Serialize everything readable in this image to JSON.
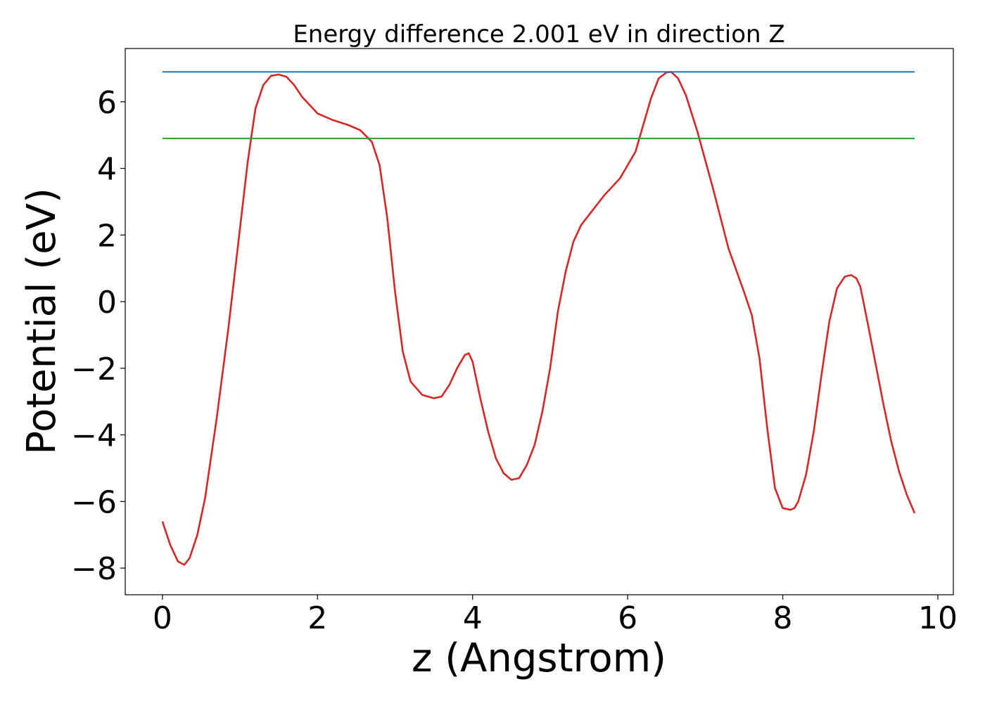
{
  "chart_data": {
    "type": "line",
    "title": "Energy difference 2.001 eV in direction Z",
    "xlabel": "z (Angstrom)",
    "ylabel": "Potential (eV)",
    "xlim": [
      -0.48,
      10.2
    ],
    "ylim": [
      -8.8,
      7.6
    ],
    "xticks": [
      0,
      2,
      4,
      6,
      8,
      10
    ],
    "xtick_labels": [
      "0",
      "2",
      "4",
      "6",
      "8",
      "10"
    ],
    "yticks": [
      -8,
      -6,
      -4,
      -2,
      0,
      2,
      4,
      6
    ],
    "ytick_labels": [
      "−8",
      "−6",
      "−4",
      "−2",
      "0",
      "2",
      "4",
      "6"
    ],
    "grid": false,
    "series": [
      {
        "color": "#d62728",
        "x": [
          0,
          0.1,
          0.2,
          0.28,
          0.35,
          0.45,
          0.55,
          0.7,
          0.85,
          1.0,
          1.1,
          1.2,
          1.3,
          1.4,
          1.5,
          1.6,
          1.7,
          1.8,
          2.0,
          2.2,
          2.4,
          2.55,
          2.7,
          2.8,
          2.9,
          3.0,
          3.1,
          3.2,
          3.35,
          3.5,
          3.6,
          3.7,
          3.8,
          3.9,
          3.95,
          4.0,
          4.1,
          4.2,
          4.3,
          4.4,
          4.5,
          4.6,
          4.7,
          4.8,
          4.9,
          5.0,
          5.1,
          5.2,
          5.3,
          5.4,
          5.5,
          5.7,
          5.9,
          6.1,
          6.2,
          6.3,
          6.4,
          6.5,
          6.56,
          6.65,
          6.75,
          6.9,
          7.1,
          7.3,
          7.5,
          7.6,
          7.7,
          7.8,
          7.9,
          8.0,
          8.1,
          8.15,
          8.2,
          8.3,
          8.4,
          8.5,
          8.6,
          8.7,
          8.8,
          8.88,
          8.95,
          9.0,
          9.1,
          9.2,
          9.3,
          9.4,
          9.5,
          9.6,
          9.7
        ],
        "y": [
          -6.6,
          -7.3,
          -7.8,
          -7.9,
          -7.7,
          -7.0,
          -5.9,
          -3.5,
          -0.8,
          2.2,
          4.2,
          5.8,
          6.5,
          6.78,
          6.82,
          6.75,
          6.5,
          6.15,
          5.65,
          5.45,
          5.3,
          5.15,
          4.8,
          4.1,
          2.5,
          0.3,
          -1.5,
          -2.4,
          -2.8,
          -2.9,
          -2.85,
          -2.5,
          -2.0,
          -1.6,
          -1.55,
          -1.8,
          -2.9,
          -3.9,
          -4.7,
          -5.15,
          -5.35,
          -5.3,
          -4.9,
          -4.3,
          -3.3,
          -2.0,
          -0.3,
          0.9,
          1.8,
          2.3,
          2.6,
          3.2,
          3.7,
          4.5,
          5.3,
          6.1,
          6.7,
          6.88,
          6.9,
          6.7,
          6.2,
          5.1,
          3.4,
          1.6,
          0.3,
          -0.4,
          -1.7,
          -3.8,
          -5.6,
          -6.2,
          -6.25,
          -6.2,
          -6.0,
          -5.2,
          -3.9,
          -2.2,
          -0.6,
          0.4,
          0.75,
          0.8,
          0.7,
          0.45,
          -0.7,
          -1.9,
          -3.1,
          -4.2,
          -5.1,
          -5.8,
          -6.35
        ]
      },
      {
        "color": "#1f77b4",
        "x": [
          0,
          9.7
        ],
        "y": [
          6.9,
          6.9
        ]
      },
      {
        "color": "#2ca02c",
        "x": [
          0,
          9.7
        ],
        "y": [
          4.9,
          4.9
        ]
      }
    ]
  }
}
